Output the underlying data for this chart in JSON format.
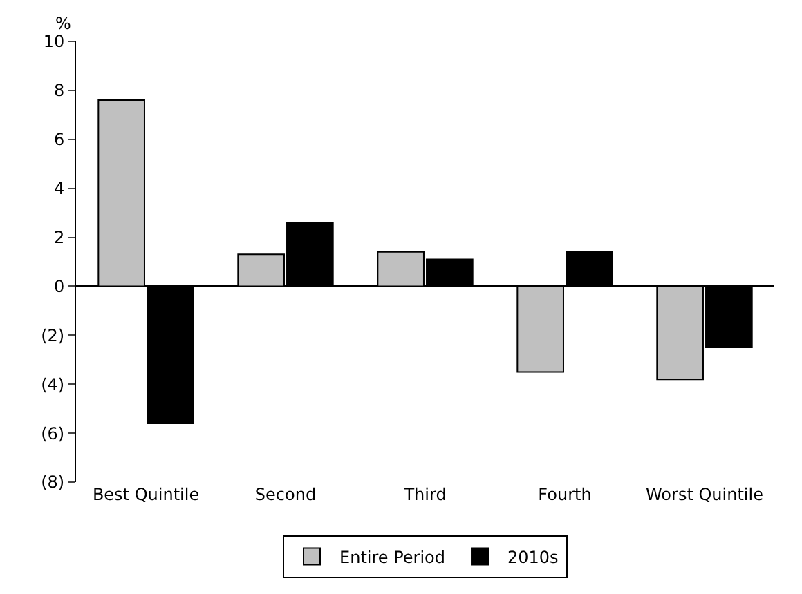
{
  "chart_data": {
    "type": "bar",
    "ylabel": "%",
    "categories": [
      "Best Quintile",
      "Second",
      "Third",
      "Fourth",
      "Worst Quintile"
    ],
    "series": [
      {
        "name": "Entire Period",
        "color": "#c0c0c0",
        "values": [
          7.6,
          1.3,
          1.4,
          -3.5,
          -3.8
        ]
      },
      {
        "name": "2010s",
        "color": "#000000",
        "values": [
          -5.6,
          2.6,
          1.1,
          1.4,
          -2.5
        ]
      }
    ],
    "ylim": [
      -8,
      10
    ],
    "yticks": [
      {
        "value": -8,
        "label": "(8)"
      },
      {
        "value": -6,
        "label": "(6)"
      },
      {
        "value": -4,
        "label": "(4)"
      },
      {
        "value": -2,
        "label": "(2)"
      },
      0,
      2,
      4,
      6,
      8,
      10
    ],
    "legend": "bottom"
  }
}
